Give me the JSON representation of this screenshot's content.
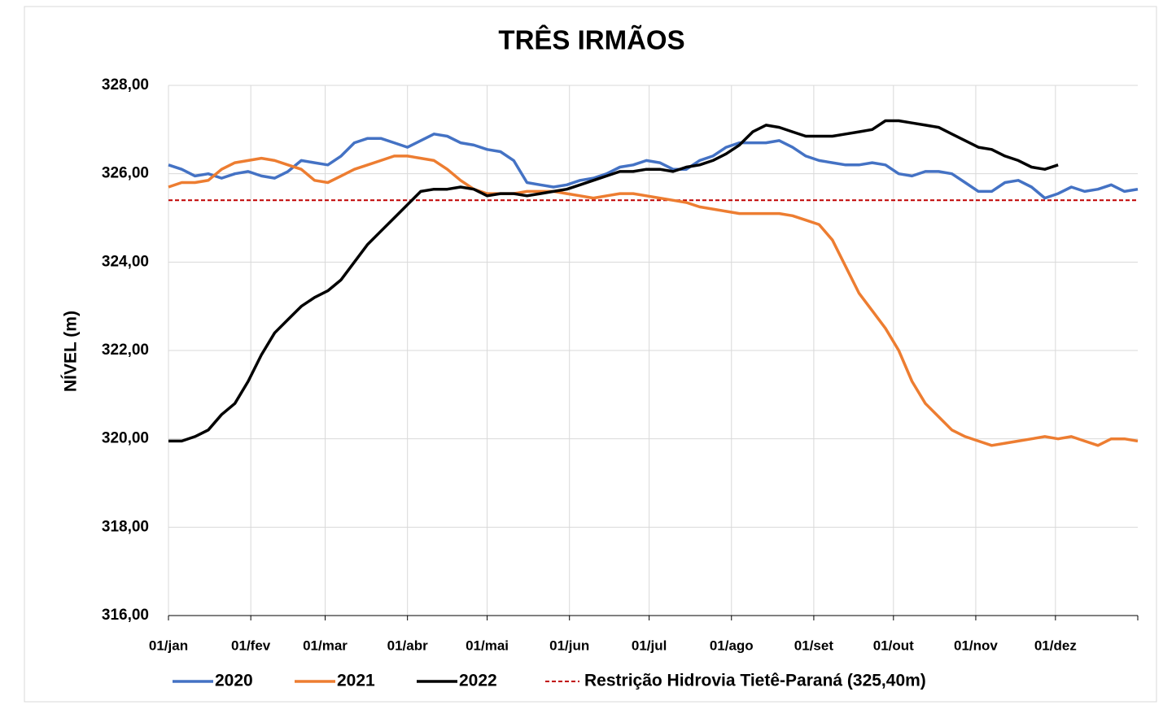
{
  "chart_data": {
    "type": "line",
    "title": "TRÊS IRMÃOS",
    "y_label": "NÍVEL (m)",
    "x": [
      0,
      5,
      10,
      15,
      20,
      25,
      30,
      35,
      40,
      45,
      50,
      55,
      60,
      65,
      70,
      75,
      80,
      85,
      90,
      95,
      100,
      105,
      110,
      115,
      120,
      125,
      130,
      135,
      140,
      145,
      150,
      155,
      160,
      165,
      170,
      175,
      180,
      185,
      190,
      195,
      200,
      205,
      210,
      215,
      220,
      225,
      230,
      235,
      240,
      245,
      250,
      255,
      260,
      265,
      270,
      275,
      280,
      285,
      290,
      295,
      300,
      305,
      310,
      315,
      320,
      325,
      330,
      335,
      340,
      345,
      350,
      355,
      360,
      365
    ],
    "xlim": [
      0,
      365
    ],
    "xticks": [
      {
        "value": 0,
        "label": "01/jan"
      },
      {
        "value": 31,
        "label": "01/fev"
      },
      {
        "value": 59,
        "label": "01/mar"
      },
      {
        "value": 90,
        "label": "01/abr"
      },
      {
        "value": 120,
        "label": "01/mai"
      },
      {
        "value": 151,
        "label": "01/jun"
      },
      {
        "value": 181,
        "label": "01/jul"
      },
      {
        "value": 212,
        "label": "01/ago"
      },
      {
        "value": 243,
        "label": "01/set"
      },
      {
        "value": 273,
        "label": "01/out"
      },
      {
        "value": 304,
        "label": "01/nov"
      },
      {
        "value": 334,
        "label": "01/dez"
      }
    ],
    "ylim": [
      316,
      328
    ],
    "yticks": [
      {
        "value": 316,
        "label": "316,00"
      },
      {
        "value": 318,
        "label": "318,00"
      },
      {
        "value": 320,
        "label": "320,00"
      },
      {
        "value": 322,
        "label": "322,00"
      },
      {
        "value": 324,
        "label": "324,00"
      },
      {
        "value": 326,
        "label": "326,00"
      },
      {
        "value": 328,
        "label": "328,00"
      }
    ],
    "grid": true,
    "series": [
      {
        "name": "2020",
        "color": "#4472c4",
        "values": [
          326.2,
          326.1,
          325.95,
          326.0,
          325.9,
          326.0,
          326.05,
          325.95,
          325.9,
          326.05,
          326.3,
          326.25,
          326.2,
          326.4,
          326.7,
          326.8,
          326.8,
          326.7,
          326.6,
          326.75,
          326.9,
          326.85,
          326.7,
          326.65,
          326.55,
          326.5,
          326.3,
          325.8,
          325.75,
          325.7,
          325.75,
          325.85,
          325.9,
          326.0,
          326.15,
          326.2,
          326.3,
          326.25,
          326.1,
          326.1,
          326.3,
          326.4,
          326.6,
          326.7,
          326.7,
          326.7,
          326.75,
          326.6,
          326.4,
          326.3,
          326.25,
          326.2,
          326.2,
          326.25,
          326.2,
          326.0,
          325.95,
          326.05,
          326.05,
          326.0,
          325.8,
          325.6,
          325.6,
          325.8,
          325.85,
          325.7,
          325.45,
          325.55,
          325.7,
          325.6,
          325.65,
          325.75,
          325.6,
          325.65
        ]
      },
      {
        "name": "2021",
        "color": "#ed7d31",
        "values": [
          325.7,
          325.8,
          325.8,
          325.85,
          326.1,
          326.25,
          326.3,
          326.35,
          326.3,
          326.2,
          326.1,
          325.85,
          325.8,
          325.95,
          326.1,
          326.2,
          326.3,
          326.4,
          326.4,
          326.35,
          326.3,
          326.1,
          325.85,
          325.65,
          325.55,
          325.55,
          325.55,
          325.6,
          325.6,
          325.6,
          325.55,
          325.5,
          325.45,
          325.5,
          325.55,
          325.55,
          325.5,
          325.45,
          325.4,
          325.35,
          325.25,
          325.2,
          325.15,
          325.1,
          325.1,
          325.1,
          325.1,
          325.05,
          324.95,
          324.85,
          324.5,
          323.9,
          323.3,
          322.9,
          322.5,
          322.0,
          321.3,
          320.8,
          320.5,
          320.2,
          320.05,
          319.95,
          319.85,
          319.9,
          319.95,
          320.0,
          320.05,
          320.0,
          320.05,
          319.95,
          319.85,
          320.0,
          320.0,
          319.95
        ]
      },
      {
        "name": "2022",
        "color": "#000000",
        "values": [
          319.95,
          319.95,
          320.05,
          320.2,
          320.55,
          320.8,
          321.3,
          321.9,
          322.4,
          322.7,
          323.0,
          323.2,
          323.35,
          323.6,
          324.0,
          324.4,
          324.7,
          325.0,
          325.3,
          325.6,
          325.65,
          325.65,
          325.7,
          325.65,
          325.5,
          325.55,
          325.55,
          325.5,
          325.55,
          325.6,
          325.65,
          325.75,
          325.85,
          325.95,
          326.05,
          326.05,
          326.1,
          326.1,
          326.05,
          326.15,
          326.2,
          326.3,
          326.45,
          326.65,
          326.95,
          327.1,
          327.05,
          326.95,
          326.85,
          326.85,
          326.85,
          326.9,
          326.95,
          327.0,
          327.2,
          327.2,
          327.15,
          327.1,
          327.05,
          326.9,
          326.75,
          326.6,
          326.55,
          326.4,
          326.3,
          326.15,
          326.1,
          326.2,
          null,
          null,
          null,
          null,
          null,
          null
        ]
      }
    ],
    "reference_line": {
      "name": "Restrição Hidrovia Tietê-Paraná (325,40m)",
      "value": 325.4,
      "color": "#c00000"
    }
  }
}
